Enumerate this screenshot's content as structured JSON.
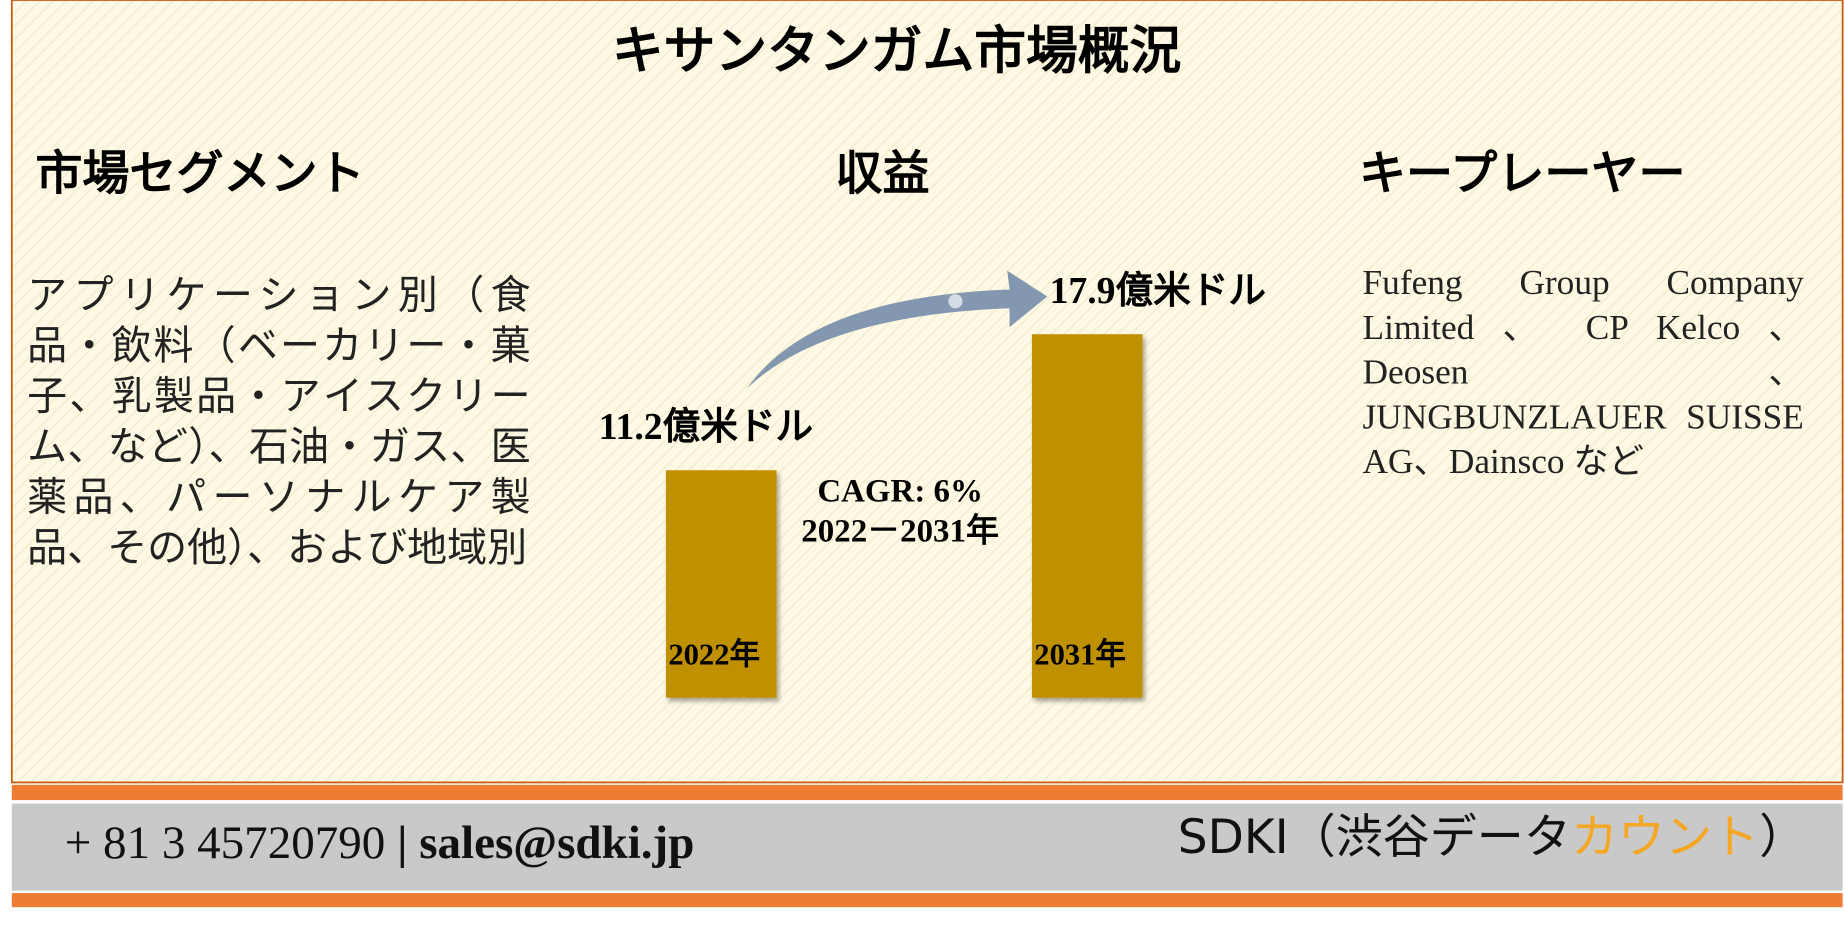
{
  "header": {
    "title": "キサンタンガム市場概況"
  },
  "segment": {
    "heading": "市場セグメント",
    "text": "アプリケーション別（食品・飲料（ベーカリー・菓子、乳製品・アイスクリーム、など）、石油・ガス、医薬品、パーソナルケア製品、その他）、および地域別"
  },
  "players": {
    "heading": "キープレーヤー",
    "text": "Fufeng Group Company Limited 、 CP Kelco 、 Deosen 、 JUNGBUNZLAUER SUISSE AG、Dainsco など"
  },
  "chart_data": {
    "type": "bar",
    "title": "収益",
    "categories": [
      "2022年",
      "2031年"
    ],
    "values": [
      11.2,
      17.9
    ],
    "value_labels": [
      "11.2億米ドル",
      "17.9億米ドル"
    ],
    "annotations": [
      "CAGR: 6%",
      "2022－2031年"
    ],
    "color": "#bf9000"
  },
  "footer": {
    "phone": "+ 81 3 45720790",
    "separator": "|",
    "email": "sales@sdki.jp",
    "brand": "SDKI（渋谷データ",
    "brand_highlight": "カウント",
    "brand_end": "）"
  }
}
